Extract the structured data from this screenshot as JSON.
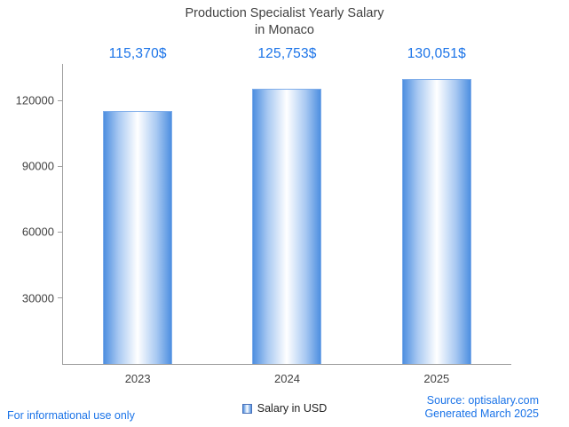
{
  "title": {
    "line1": "Production Specialist Yearly Salary",
    "line2": "in Monaco"
  },
  "legend": {
    "label": "Salary in USD"
  },
  "footer": {
    "left": "For informational use only",
    "source": "Source: optisalary.com",
    "generated": "Generated March 2025"
  },
  "colors": {
    "accent_blue": "#1a73e8",
    "bar_edge_blue": "#4e8fe0",
    "axis_gray": "#9e9e9e",
    "title_text": "#424242"
  },
  "chart_data": {
    "type": "bar",
    "title": "Production Specialist Yearly Salary in Monaco",
    "categories": [
      "2023",
      "2024",
      "2025"
    ],
    "values": [
      115370,
      125753,
      130051
    ],
    "value_labels": [
      "115,370$",
      "125,753$",
      "130,051$"
    ],
    "series_name": "Salary in USD",
    "xlabel": "",
    "ylabel": "",
    "yticks": [
      30000,
      60000,
      90000,
      120000
    ],
    "ylim": [
      0,
      137000
    ],
    "grid": false,
    "legend_position": "bottom"
  }
}
